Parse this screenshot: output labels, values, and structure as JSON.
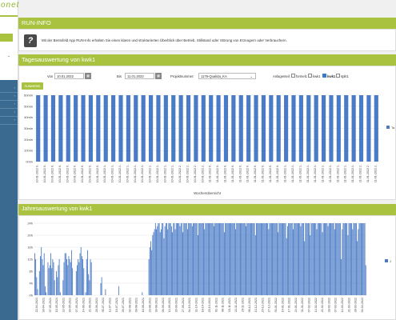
{
  "brand": {
    "logo_text": "onet"
  },
  "colors": {
    "accent": "#a9c23f",
    "bar_blue": "#4a7bc6",
    "sidebar_blue": "#3a6a8f"
  },
  "sidebar": {
    "chevron": "⌄",
    "item_chevron": "›"
  },
  "runinfo": {
    "title": "RUN-INFO",
    "icon": "?",
    "text": "Mit der Bentofeld App RUN-Info erhalten Sie einen klaren und strukturierten Überblick über Betrieb, Stillstand oder Störung von Erzeugern oder Verbrauchern."
  },
  "daily": {
    "title": "Tagesauswertung von kwk1",
    "from_label": "Von",
    "from_value": "10.01.2022",
    "to_label": "Bis",
    "to_value": "11.01.2022",
    "calendar_icon": "▦",
    "project_label": "Projektnummer:",
    "project_value": "1179-Qualida_KA",
    "dropdown_icon": "⌄",
    "systems_label": "Anlagenteil:",
    "systems": [
      {
        "label": "formel1",
        "checked": false
      },
      {
        "label": "kwk1",
        "checked": false
      },
      {
        "label": "kwk1",
        "checked": true
      },
      {
        "label": "split1",
        "checked": false
      }
    ],
    "button_label": "Auswerten",
    "legend_label": "Ta",
    "chart_data": {
      "type": "bar",
      "title": "",
      "xlabel": "Wochenübersicht",
      "ylabel": "",
      "ylim": [
        0,
        60
      ],
      "y_ticks": [
        "0min",
        "10min",
        "20min",
        "30min",
        "40min",
        "50min",
        "60min"
      ],
      "categories": [
        "10-01-2022 0..",
        "10-01-2022 0..",
        "10-01-2022 0..",
        "10-01-2022 0..",
        "10-01-2022 0..",
        "10-01-2022 0..",
        "10-01-2022 0..",
        "10-01-2022 0..",
        "10-01-2022 0..",
        "10-01-2022 1..",
        "10-01-2022 1..",
        "10-01-2022 1..",
        "10-01-2022 1..",
        "10-01-2022 1..",
        "10-01-2022 1..",
        "10-01-2022 1..",
        "10-01-2022 1..",
        "10-01-2022 1..",
        "10-01-2022 1..",
        "10-01-2022 2..",
        "10-01-2022 2..",
        "10-01-2022 2..",
        "10-01-2022 2..",
        "11-01-2022 0..",
        "11-01-2022 0..",
        "11-01-2022 0..",
        "11-01-2022 0..",
        "11-01-2022 0..",
        "11-01-2022 0..",
        "11-01-2022 0..",
        "11-01-2022 0..",
        "11-01-2022 0..",
        "11-01-2022 0..",
        "11-01-2022 1..",
        "11-01-2022 1..",
        "11-01-2022 1..",
        "11-01-2022 1..",
        "11-01-2022 1..",
        "11-01-2022 1..",
        "11-01-2022 1..",
        "11-01-2022 1..",
        "11-01-2022 1..",
        "11-01-2022 1..",
        "11-01-2022 2..",
        "11-01-2022 2..",
        "11-01-2022 2.."
      ],
      "values": [
        60,
        60,
        60,
        60,
        60,
        60,
        60,
        60,
        60,
        60,
        60,
        60,
        60,
        60,
        60,
        60,
        60,
        60,
        60,
        60,
        60,
        60,
        60,
        60,
        60,
        60,
        60,
        60,
        60,
        60,
        60,
        60,
        60,
        60,
        60,
        60,
        60,
        60,
        60,
        60,
        60,
        60,
        60,
        60,
        60,
        60
      ]
    }
  },
  "yearly": {
    "title": "Jahresauswertung von kwk1",
    "legend_label": "J",
    "chart_data": {
      "type": "bar",
      "title": "",
      "xlabel": "",
      "ylabel": "",
      "ylim": [
        0,
        24
      ],
      "y_ticks": [
        "0h",
        "4h",
        "8h",
        "12h",
        "16h",
        "20h",
        "24h"
      ],
      "x_tick_labels": [
        "22-04-2021",
        "30-04-2021",
        "07-05-2021",
        "15-05-2021",
        "22-05-2021",
        "30-05-2021",
        "07-06-2021",
        "14-06-2021",
        "21-06-2021",
        "28-06-2021",
        "05-07-2021",
        "12-07-2021",
        "19-07-2021",
        "26-07-2021",
        "02-08-2021",
        "09-08-2021",
        "16-08-2021",
        "23-08-2021",
        "30-08-2021",
        "06-09-2021",
        "13-09-2021",
        "20-09-2021",
        "27-09-2021",
        "04-10-2021",
        "11-10-2021",
        "18-10-2021",
        "25-10-2021",
        "01-11-2021",
        "08-11-2021",
        "15-11-2021",
        "22-11-2021",
        "29-11-2021",
        "06-12-2021",
        "13-12-2021",
        "20-12-2021",
        "27-12-2021",
        "03-01-2022",
        "10-01-2022",
        "17-01-2022",
        "24-01-2022",
        "31-01-2022",
        "07-02-2022",
        "14-02-2022",
        "21-02-2022",
        "28-02-2022",
        "07-03-2022",
        "14-03-2022",
        "21-03-2022",
        "28-03-2022",
        "04-04-2022"
      ],
      "values": [
        14,
        12,
        6,
        2,
        0,
        8,
        13,
        16,
        12,
        10,
        14,
        3,
        1,
        0,
        11,
        9,
        10,
        14,
        9,
        12,
        11,
        5,
        0,
        8,
        6,
        10,
        12,
        1,
        0,
        0,
        5,
        11,
        14,
        14,
        12,
        10,
        13,
        12,
        11,
        15,
        9,
        0,
        0,
        0,
        8,
        10,
        12,
        11,
        14,
        16,
        13,
        12,
        9,
        0,
        1,
        12,
        15,
        7,
        5,
        12,
        11,
        0,
        0,
        0,
        0,
        0,
        0,
        0,
        0,
        0,
        4,
        6,
        0,
        0,
        0,
        2,
        0,
        0,
        0,
        0,
        0,
        0,
        0,
        0,
        0,
        0,
        0,
        0,
        0,
        3,
        0,
        0,
        0,
        0,
        0,
        0,
        0,
        0,
        0,
        0,
        0,
        0,
        0,
        0,
        0,
        0,
        0,
        0,
        0,
        0,
        0,
        0,
        0,
        0,
        1,
        0,
        0,
        0,
        0,
        0,
        0,
        12,
        16,
        18,
        15,
        20,
        21,
        22,
        24,
        22,
        23,
        24,
        24,
        21,
        22,
        24,
        24,
        19,
        23,
        24,
        24,
        22,
        24,
        24,
        24,
        23,
        21,
        24,
        24,
        22,
        24,
        24,
        24,
        24,
        23,
        24,
        24,
        21,
        24,
        24,
        24,
        24,
        22,
        24,
        24,
        24,
        24,
        23,
        24,
        24,
        24,
        24,
        24,
        20,
        24,
        24,
        24,
        24,
        24,
        24,
        22,
        24,
        24,
        24,
        24,
        24,
        24,
        24,
        24,
        24,
        23,
        24,
        24,
        24,
        24,
        24,
        24,
        24,
        24,
        24,
        24,
        21,
        24,
        24,
        24,
        24,
        24,
        24,
        24,
        24,
        24,
        24,
        24,
        22,
        24,
        24,
        24,
        24,
        24,
        24,
        24,
        24,
        24,
        24,
        23,
        24,
        24,
        24,
        24,
        24,
        24,
        24,
        24,
        24,
        20,
        24,
        24,
        24,
        24,
        24,
        24,
        24,
        24,
        24,
        24,
        24,
        24,
        24,
        22,
        24,
        24,
        24,
        24,
        24,
        24,
        24,
        24,
        24,
        21,
        24,
        24,
        24,
        24,
        24,
        24,
        24,
        24,
        19,
        23,
        24,
        24,
        24,
        24,
        24,
        22,
        24,
        24,
        24,
        24,
        24,
        24,
        24,
        23,
        24,
        24,
        24,
        18,
        24,
        24,
        24,
        24,
        24,
        20,
        24,
        24,
        24,
        24,
        24,
        24,
        22,
        24,
        24,
        24,
        24,
        24,
        21,
        24,
        24,
        24,
        24,
        24,
        23,
        24,
        24,
        24,
        24,
        24,
        24,
        22,
        24,
        24,
        24,
        24,
        24,
        24,
        12,
        22,
        24,
        24,
        24,
        24,
        24,
        20,
        24,
        24,
        24,
        24,
        22,
        24,
        24,
        24,
        24,
        18,
        22,
        24,
        24,
        24,
        24,
        24,
        24,
        24,
        10
      ]
    }
  }
}
